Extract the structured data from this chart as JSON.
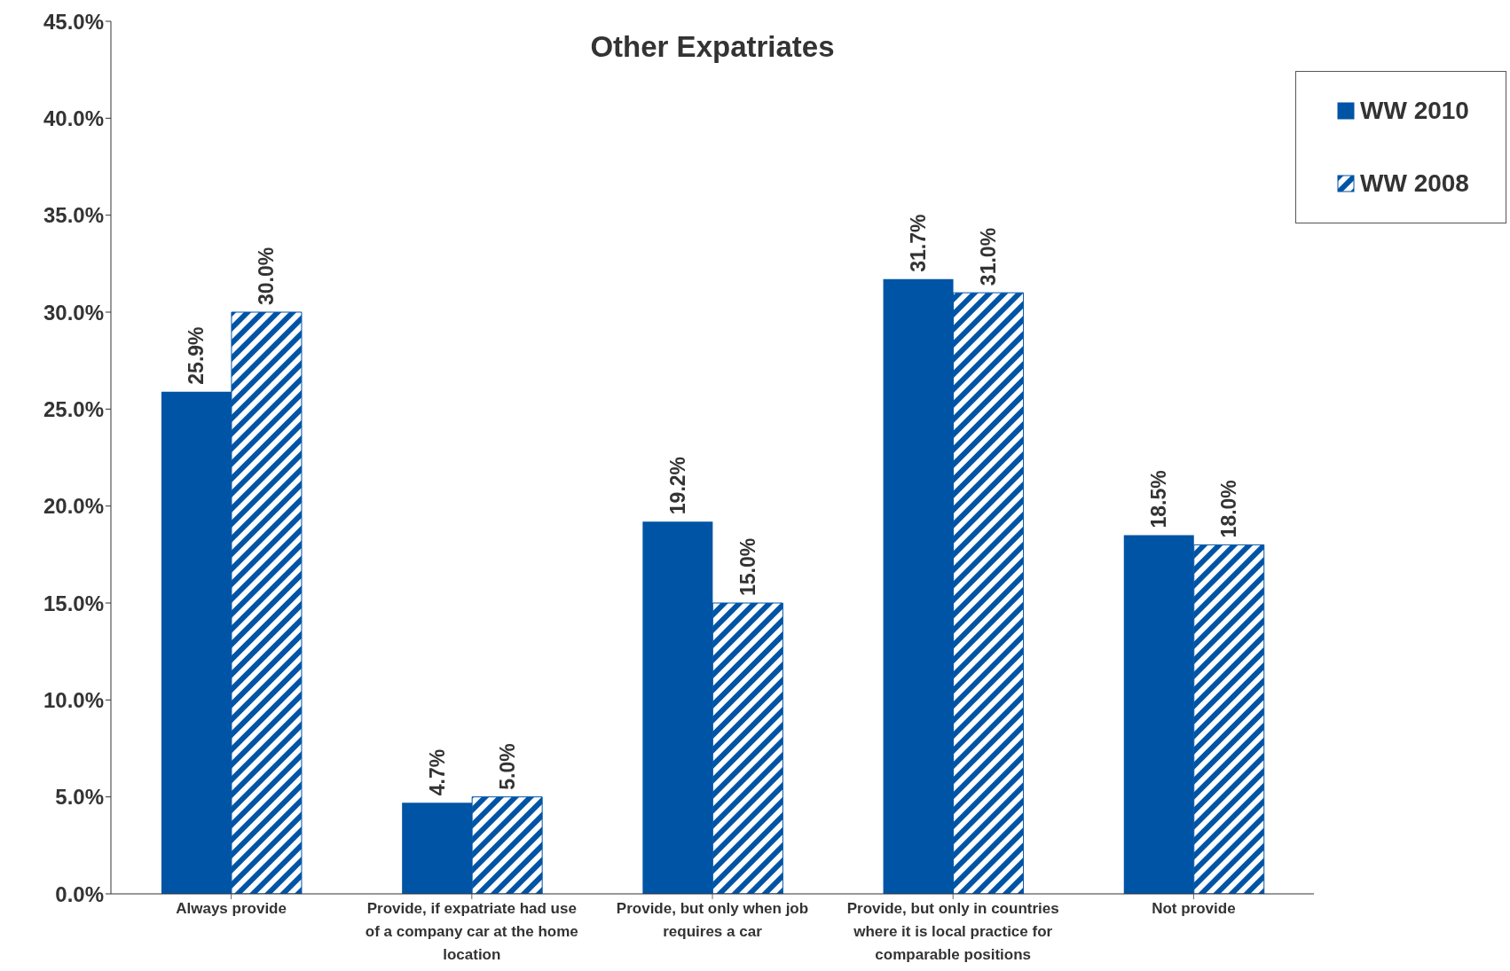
{
  "chart_data": {
    "type": "bar",
    "title": "Other Expatriates",
    "categories": [
      "Always provide",
      "Provide, if expatriate had use of a company car at the home location",
      "Provide, but only when job requires a car",
      "Provide, but only in countries where it is local practice for comparable positions",
      "Not provide"
    ],
    "series": [
      {
        "name": "WW 2010",
        "color": "#0054a6",
        "values": [
          25.9,
          4.7,
          19.2,
          31.7,
          18.5
        ],
        "value_labels": [
          "25.9%",
          "4.7%",
          "19.2%",
          "31.7%",
          "18.5%"
        ]
      },
      {
        "name": "WW 2008",
        "color": "#0054a6",
        "values": [
          30.0,
          5.0,
          15.0,
          31.0,
          18.0
        ],
        "value_labels": [
          "30.0%",
          "5.0%",
          "15.0%",
          "31.0%",
          "18.0%"
        ]
      }
    ],
    "ylim": [
      0,
      45
    ],
    "yticks": [
      {
        "value": 0,
        "label": "0.0%"
      },
      {
        "value": 5,
        "label": "5.0%"
      },
      {
        "value": 10,
        "label": "10.0%"
      },
      {
        "value": 15,
        "label": "15.0%"
      },
      {
        "value": 20,
        "label": "20.0%"
      },
      {
        "value": 25,
        "label": "25.0%"
      },
      {
        "value": 30,
        "label": "30.0%"
      },
      {
        "value": 35,
        "label": "35.0%"
      },
      {
        "value": 40,
        "label": "40.0%"
      },
      {
        "value": 45,
        "label": "45.0%"
      }
    ],
    "grid": false,
    "legend": "top right"
  }
}
